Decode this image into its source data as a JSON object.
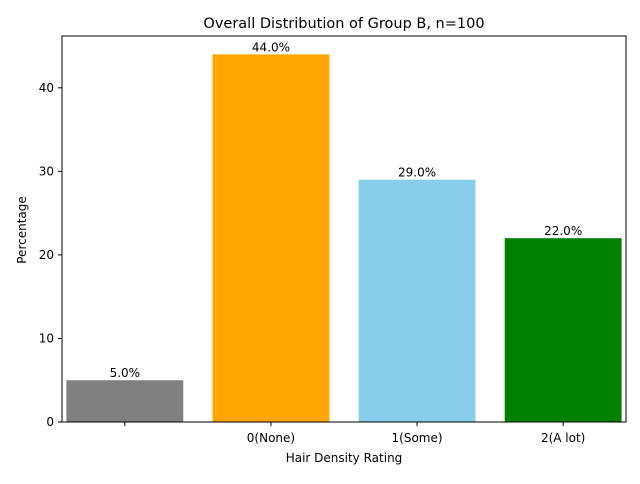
{
  "chart_data": {
    "type": "bar",
    "title": "Overall Distribution of Group B, n=100",
    "xlabel": "Hair Density Rating",
    "ylabel": "Percentage",
    "categories": [
      "",
      "0(None)",
      "1(Some)",
      "2(A lot)"
    ],
    "values": [
      5.0,
      44.0,
      29.0,
      22.0
    ],
    "value_labels": [
      "5.0%",
      "44.0%",
      "29.0%",
      "22.0%"
    ],
    "bar_colors": [
      "#808080",
      "#ffa500",
      "#87ceeb",
      "#008000"
    ],
    "ylim": [
      0,
      46.2
    ],
    "yticks": [
      0,
      10,
      20,
      30,
      40
    ],
    "grid": false,
    "legend": "none"
  }
}
